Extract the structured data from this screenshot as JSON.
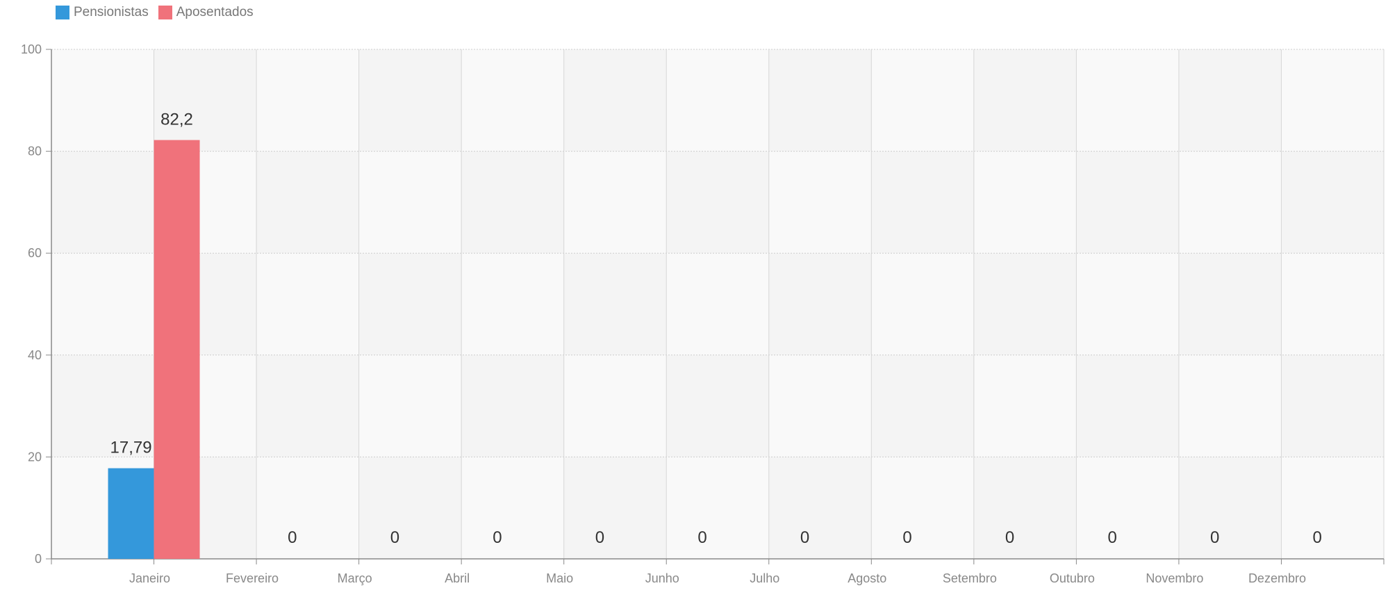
{
  "chart_data": {
    "type": "bar",
    "categories": [
      "Janeiro",
      "Fevereiro",
      "Março",
      "Abril",
      "Maio",
      "Junho",
      "Julho",
      "Agosto",
      "Setembro",
      "Outubro",
      "Novembro",
      "Dezembro"
    ],
    "series": [
      {
        "name": "Pensionistas",
        "color": "#3498db",
        "values": [
          17.79,
          0,
          0,
          0,
          0,
          0,
          0,
          0,
          0,
          0,
          0,
          0
        ]
      },
      {
        "name": "Aposentados",
        "color": "#f0727b",
        "values": [
          82.2,
          0,
          0,
          0,
          0,
          0,
          0,
          0,
          0,
          0,
          0,
          0
        ]
      }
    ],
    "data_labels": {
      "Janeiro": [
        "17,79",
        "82,2"
      ],
      "others": "0"
    },
    "title": "",
    "xlabel": "",
    "ylabel": "",
    "ylim": [
      0,
      100
    ],
    "yticks": [
      "0",
      "20",
      "40",
      "60",
      "80",
      "100"
    ],
    "grid": true,
    "legend_position": "top-left"
  }
}
